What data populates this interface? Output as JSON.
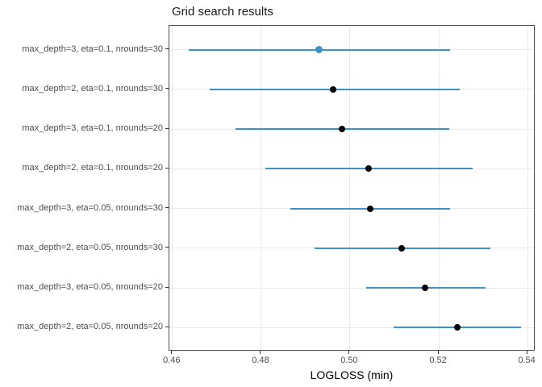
{
  "chart_data": {
    "type": "scatter",
    "title": "Grid search results",
    "xlabel": "LOGLOSS (min)",
    "ylabel": "",
    "legend_position": "none",
    "grid": "major-only",
    "xlim": [
      0.4593,
      0.5418
    ],
    "x_ticks": [
      0.46,
      0.48,
      0.5,
      0.52,
      0.54
    ],
    "x_tick_labels": [
      "0.46",
      "0.48",
      "0.50",
      "0.52",
      "0.54"
    ],
    "rows": [
      {
        "label": "max_depth=3, eta=0.1, nrounds=30",
        "min": 0.4636,
        "value": 0.493,
        "max": 0.5226,
        "best": true
      },
      {
        "label": "max_depth=2, eta=0.1, nrounds=30",
        "min": 0.4684,
        "value": 0.4962,
        "max": 0.5247,
        "best": false
      },
      {
        "label": "max_depth=3, eta=0.1, nrounds=20",
        "min": 0.4742,
        "value": 0.4981,
        "max": 0.5223,
        "best": false
      },
      {
        "label": "max_depth=2, eta=0.1, nrounds=20",
        "min": 0.481,
        "value": 0.5042,
        "max": 0.5276,
        "best": false
      },
      {
        "label": "max_depth=3, eta=0.05, nrounds=30",
        "min": 0.4866,
        "value": 0.5045,
        "max": 0.5226,
        "best": false
      },
      {
        "label": "max_depth=2, eta=0.05, nrounds=30",
        "min": 0.4921,
        "value": 0.5116,
        "max": 0.5317,
        "best": false
      },
      {
        "label": "max_depth=3, eta=0.05, nrounds=20",
        "min": 0.5036,
        "value": 0.5169,
        "max": 0.5306,
        "best": false
      },
      {
        "label": "max_depth=2, eta=0.05, nrounds=20",
        "min": 0.5099,
        "value": 0.5242,
        "max": 0.5386,
        "best": false
      }
    ],
    "colors": {
      "line": "#3d92c5",
      "point": "#000000",
      "best_point": "#3d92c5",
      "grid": "#ebebeb",
      "panel_border": "#4d4d4d",
      "axis_text": "#4d4d4d",
      "title_text": "#1a1a1a"
    }
  }
}
